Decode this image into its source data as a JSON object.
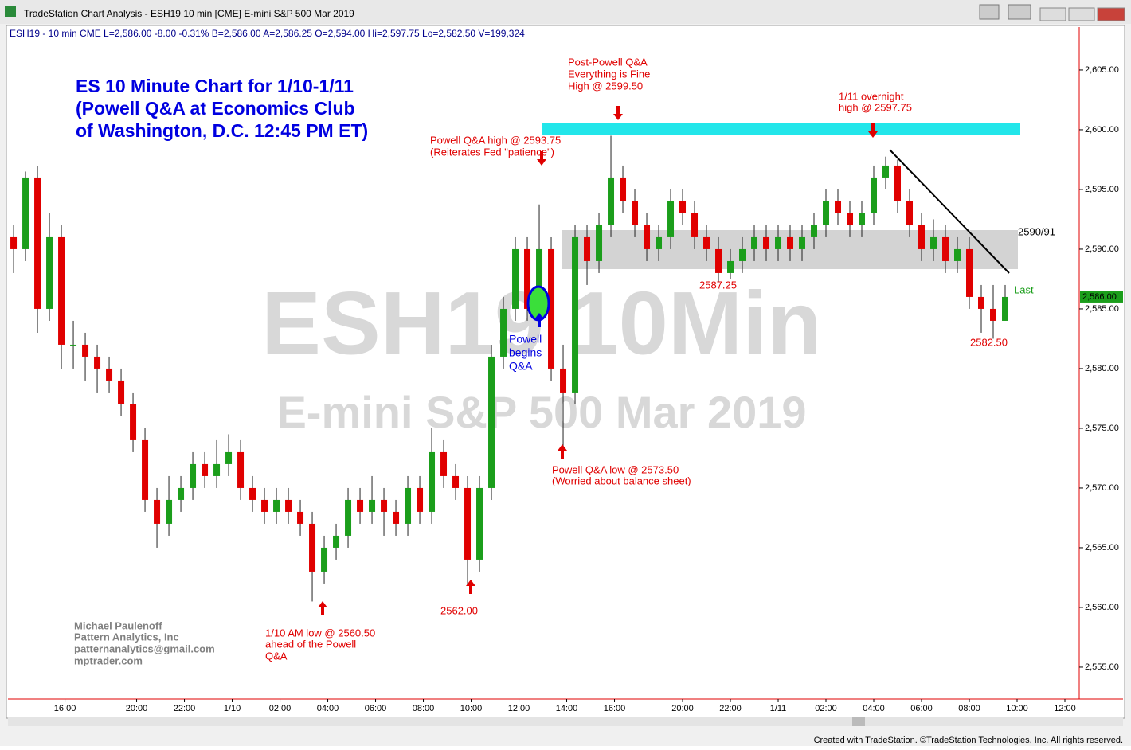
{
  "window_title": "TradeStation Chart Analysis - ESH19 10 min [CME] E-mini S&P 500 Mar 2019",
  "footer": "Created with TradeStation. ©TradeStation Technologies, Inc. All rights reserved.",
  "chart_data": {
    "type": "candlestick",
    "status_line": "ESH19 - 10 min  CME  L=2,586.00  -8.00   -0.31%  B=2,586.00  A=2,586.25  O=2,594.00  Hi=2,597.75  Lo=2,582.50  V=199,324",
    "watermark": [
      "ESH19 10Min",
      "E-mini S&P 500 Mar 2019"
    ],
    "up_color": "#1b9e1b",
    "down_color": "#e00000",
    "open": [
      2591,
      2590,
      2596,
      2585,
      2591,
      2582,
      2582,
      2581,
      2580,
      2579,
      2577,
      2574,
      2569,
      2567,
      2569,
      2570,
      2572,
      2571,
      2572,
      2573,
      2570,
      2569,
      2568,
      2569,
      2568,
      2567,
      2563,
      2565,
      2566,
      2569,
      2568,
      2569,
      2568,
      2567,
      2570,
      2568,
      2573,
      2571,
      2570,
      2564,
      2570,
      2581,
      2585,
      2590,
      2585,
      2590,
      2580,
      2578,
      2591,
      2589,
      2592,
      2596,
      2594,
      2592,
      2590,
      2591,
      2594,
      2593,
      2591,
      2590,
      2588,
      2589,
      2590,
      2591,
      2590,
      2591,
      2590,
      2591,
      2592,
      2594,
      2593,
      2592,
      2593,
      2596,
      2597,
      2594,
      2592,
      2590,
      2591,
      2589,
      2590,
      2586,
      2585,
      2584
    ],
    "high": [
      2592,
      2596.5,
      2597,
      2593,
      2592,
      2584,
      2583,
      2582,
      2581,
      2580,
      2578,
      2575,
      2570,
      2571,
      2571,
      2573,
      2573,
      2574,
      2574.5,
      2574,
      2571,
      2570,
      2570,
      2570,
      2569,
      2568,
      2566,
      2567,
      2570,
      2570,
      2571,
      2570,
      2569,
      2571,
      2571,
      2575,
      2574,
      2572,
      2571,
      2571,
      2582,
      2586,
      2591,
      2591,
      2593.75,
      2591,
      2582,
      2592,
      2592,
      2593,
      2599.5,
      2597,
      2595,
      2593,
      2592,
      2595,
      2595,
      2594,
      2592,
      2591,
      2590,
      2591,
      2592,
      2592,
      2592,
      2592,
      2592,
      2593,
      2595,
      2595,
      2594,
      2594,
      2597,
      2597.75,
      2597.5,
      2595,
      2593,
      2592.5,
      2592,
      2591,
      2591,
      2587,
      2587,
      2587
    ],
    "low": [
      2588,
      2589,
      2583,
      2584,
      2580,
      2580,
      2579,
      2578,
      2578,
      2576,
      2573,
      2568,
      2565,
      2566,
      2568,
      2569,
      2570,
      2570,
      2571,
      2569,
      2568,
      2567,
      2567,
      2567,
      2566,
      2560.5,
      2562,
      2564,
      2565,
      2567,
      2567,
      2566,
      2566,
      2566,
      2567,
      2567,
      2570,
      2569,
      2562,
      2563,
      2569,
      2580,
      2584,
      2584,
      2584,
      2579,
      2573.5,
      2577,
      2587,
      2588,
      2591,
      2593,
      2591,
      2589,
      2589,
      2590,
      2592,
      2590,
      2589,
      2587.25,
      2587.5,
      2588,
      2589,
      2589,
      2589,
      2589,
      2589,
      2590,
      2591,
      2592,
      2591,
      2591,
      2592,
      2595,
      2593,
      2591,
      2589,
      2589,
      2588,
      2588,
      2585,
      2583,
      2582.5,
      2584
    ],
    "close": [
      2590,
      2596,
      2585,
      2591,
      2582,
      2582,
      2581,
      2580,
      2579,
      2577,
      2574,
      2569,
      2567,
      2569,
      2570,
      2572,
      2571,
      2572,
      2573,
      2570,
      2569,
      2568,
      2569,
      2568,
      2567,
      2563,
      2565,
      2566,
      2569,
      2568,
      2569,
      2568,
      2567,
      2570,
      2568,
      2573,
      2571,
      2570,
      2564,
      2570,
      2581,
      2585,
      2590,
      2585,
      2590,
      2580,
      2578,
      2591,
      2589,
      2592,
      2596,
      2594,
      2592,
      2590,
      2591,
      2594,
      2593,
      2591,
      2590,
      2588,
      2589,
      2590,
      2591,
      2590,
      2591,
      2590,
      2591,
      2592,
      2594,
      2593,
      2592,
      2593,
      2596,
      2597,
      2594,
      2592,
      2590,
      2591,
      2589,
      2590,
      2586,
      2585,
      2584,
      2586
    ],
    "xlim": [
      -0.47,
      89.2
    ],
    "xticks": [
      {
        "value": 4.3,
        "label": "16:00"
      },
      {
        "value": 10.3,
        "label": "20:00"
      },
      {
        "value": 14.3,
        "label": "22:00"
      },
      {
        "value": 18.3,
        "label": "1/10"
      },
      {
        "value": 22.3,
        "label": "02:00"
      },
      {
        "value": 26.3,
        "label": "04:00"
      },
      {
        "value": 30.3,
        "label": "06:00"
      },
      {
        "value": 34.3,
        "label": "08:00"
      },
      {
        "value": 38.3,
        "label": "10:00"
      },
      {
        "value": 42.3,
        "label": "12:00"
      },
      {
        "value": 46.3,
        "label": "14:00"
      },
      {
        "value": 50.3,
        "label": "16:00"
      },
      {
        "value": 56,
        "label": "20:00"
      },
      {
        "value": 60,
        "label": "22:00"
      },
      {
        "value": 64,
        "label": "1/11"
      },
      {
        "value": 68,
        "label": "02:00"
      },
      {
        "value": 72,
        "label": "04:00"
      },
      {
        "value": 76,
        "label": "06:00"
      },
      {
        "value": 80,
        "label": "08:00"
      },
      {
        "value": 84,
        "label": "10:00"
      },
      {
        "value": 88,
        "label": "12:00"
      }
    ],
    "ylim": [
      2552.33,
      2608.53
    ],
    "yticks": [
      {
        "value": 2555,
        "label": "2,555.00"
      },
      {
        "value": 2560,
        "label": "2,560.00"
      },
      {
        "value": 2565,
        "label": "2,565.00"
      },
      {
        "value": 2570,
        "label": "2,570.00"
      },
      {
        "value": 2575,
        "label": "2,575.00"
      },
      {
        "value": 2580,
        "label": "2,580.00"
      },
      {
        "value": 2585,
        "label": "2,585.00"
      },
      {
        "value": 2590,
        "label": "2,590.00"
      },
      {
        "value": 2595,
        "label": "2,595.00"
      },
      {
        "value": 2600,
        "label": "2,600.00"
      },
      {
        "value": 2605,
        "label": "2,605.00"
      }
    ],
    "last_price": {
      "value": 2586,
      "label": "2,586.00"
    },
    "last_text": "Last",
    "annotations": [
      {
        "lines": [
          "ES 10 Minute Chart for 1/10-1/11",
          "(Powell Q&A at Economics Club",
          "of Washington, D.C. 12:45 PM ET)"
        ]
      },
      {
        "lines": [
          "Post-Powell Q&A",
          "Everything is Fine",
          "High @ 2599.50"
        ]
      },
      {
        "lines": [
          "1/11 overnight",
          "high @ 2597.75"
        ]
      },
      {
        "lines": [
          "Powell Q&A high @ 2593.75",
          "(Reiterates Fed \"patience\")"
        ]
      },
      {
        "lines": [
          "Powell",
          "begins",
          "Q&A"
        ]
      },
      {
        "lines": [
          "2587.25"
        ]
      },
      {
        "lines": [
          "2582.50"
        ]
      },
      {
        "lines": [
          "Powell Q&A low @ 2573.50",
          "(Worried about balance sheet)"
        ]
      },
      {
        "lines": [
          "1/10 AM low @ 2560.50",
          "ahead of the Powell",
          "Q&A"
        ]
      },
      {
        "lines": [
          "2562.00"
        ]
      },
      {
        "lines": [
          "2590/91"
        ]
      },
      {
        "lines": [
          "Michael Paulenoff",
          "Pattern Analytics, Inc",
          "patternanalytics@gmail.com",
          "mptrader.com"
        ]
      }
    ]
  }
}
